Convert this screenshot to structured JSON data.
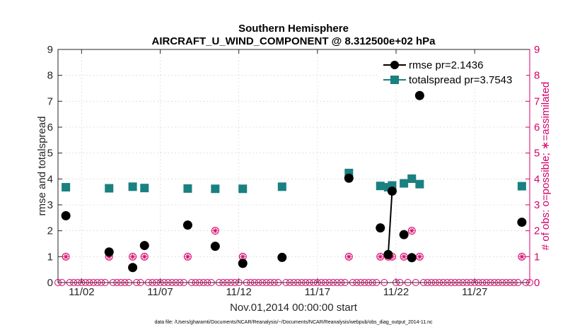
{
  "chart_data": {
    "type": "scatter",
    "title": "Southern Hemisphere",
    "subtitle": "AIRCRAFT_U_WIND_COMPONENT @ 8.312500e+02 hPa",
    "xlabel": "Nov.01,2014 00:00:00 start",
    "ylabel": "rmse and totalspread",
    "ylabel_right": "# of obs: o=possible; ∗=assimilated",
    "xlim": [
      0.5,
      30.5
    ],
    "ylim": [
      0,
      9
    ],
    "ylim_right": [
      0,
      9
    ],
    "x_ticks": [
      2,
      7,
      12,
      17,
      22,
      27
    ],
    "x_tick_labels": [
      "11/02",
      "11/07",
      "11/12",
      "11/17",
      "11/22",
      "11/27"
    ],
    "y_ticks": [
      0,
      1,
      2,
      3,
      4,
      5,
      6,
      7,
      8,
      9
    ],
    "y_tick_labels": [
      "0",
      "1",
      "2",
      "3",
      "4",
      "5",
      "6",
      "7",
      "8",
      "9"
    ],
    "y_tick_labels_right": [
      "0",
      "1",
      "2",
      "3",
      "4",
      "5",
      "6",
      "7",
      "8",
      "9"
    ],
    "grid": true,
    "legend_location": "top-right",
    "series": [
      {
        "name": "rmse pr=2.1436",
        "color": "#000000",
        "marker": "circle",
        "points": [
          [
            1.0,
            2.58
          ],
          [
            3.75,
            1.18
          ],
          [
            5.25,
            0.58
          ],
          [
            6.0,
            1.43
          ],
          [
            8.75,
            2.22
          ],
          [
            10.5,
            1.4
          ],
          [
            12.25,
            0.74
          ],
          [
            14.75,
            0.97
          ],
          [
            19.0,
            4.03
          ],
          [
            21.0,
            2.11
          ],
          [
            21.5,
            1.08
          ],
          [
            21.75,
            3.53
          ],
          [
            22.5,
            1.85
          ],
          [
            23.0,
            0.96
          ],
          [
            23.5,
            7.22
          ],
          [
            30.0,
            2.33
          ]
        ],
        "line_segments": [
          [
            21.5,
            21.75
          ]
        ]
      },
      {
        "name": "totalspread pr=3.7543",
        "color": "#1a8080",
        "marker": "square",
        "points": [
          [
            1.0,
            3.68
          ],
          [
            3.75,
            3.64
          ],
          [
            5.25,
            3.7
          ],
          [
            6.0,
            3.65
          ],
          [
            8.75,
            3.63
          ],
          [
            10.5,
            3.62
          ],
          [
            12.25,
            3.62
          ],
          [
            14.75,
            3.7
          ],
          [
            19.0,
            4.23
          ],
          [
            21.0,
            3.73
          ],
          [
            21.5,
            3.68
          ],
          [
            21.75,
            3.75
          ],
          [
            22.5,
            3.83
          ],
          [
            23.0,
            4.01
          ],
          [
            23.5,
            3.8
          ],
          [
            30.0,
            3.72
          ]
        ]
      }
    ],
    "obs_possible": {
      "color": "#d6006a",
      "points": [
        [
          1.0,
          1
        ],
        [
          3.75,
          1
        ],
        [
          5.25,
          1
        ],
        [
          6.0,
          1
        ],
        [
          8.75,
          1
        ],
        [
          10.5,
          2
        ],
        [
          12.25,
          1
        ],
        [
          14.75,
          1
        ],
        [
          19.0,
          1
        ],
        [
          21.0,
          1
        ],
        [
          21.5,
          1
        ],
        [
          21.75,
          1
        ],
        [
          22.5,
          1
        ],
        [
          23.0,
          2
        ],
        [
          23.5,
          1
        ],
        [
          30.0,
          1
        ]
      ],
      "zero_range": [
        0.5,
        30.5
      ],
      "zero_step": 0.25
    },
    "obs_assimilated": {
      "color": "#d6006a",
      "points": [
        [
          1.0,
          1
        ],
        [
          3.75,
          1
        ],
        [
          5.25,
          1
        ],
        [
          6.0,
          1
        ],
        [
          8.75,
          1
        ],
        [
          10.5,
          2
        ],
        [
          12.25,
          1
        ],
        [
          14.75,
          1
        ],
        [
          19.0,
          1
        ],
        [
          21.0,
          1
        ],
        [
          21.5,
          1
        ],
        [
          21.75,
          1
        ],
        [
          22.5,
          1
        ],
        [
          23.0,
          2
        ],
        [
          23.5,
          1
        ],
        [
          30.0,
          1
        ]
      ]
    }
  },
  "footer": "data file: /Users/gharamti/Documents/NCAR/Reanalysis/~/Documents/NCAR/Reanalysis/webpub/obs_diag_output_2014-11.nc"
}
